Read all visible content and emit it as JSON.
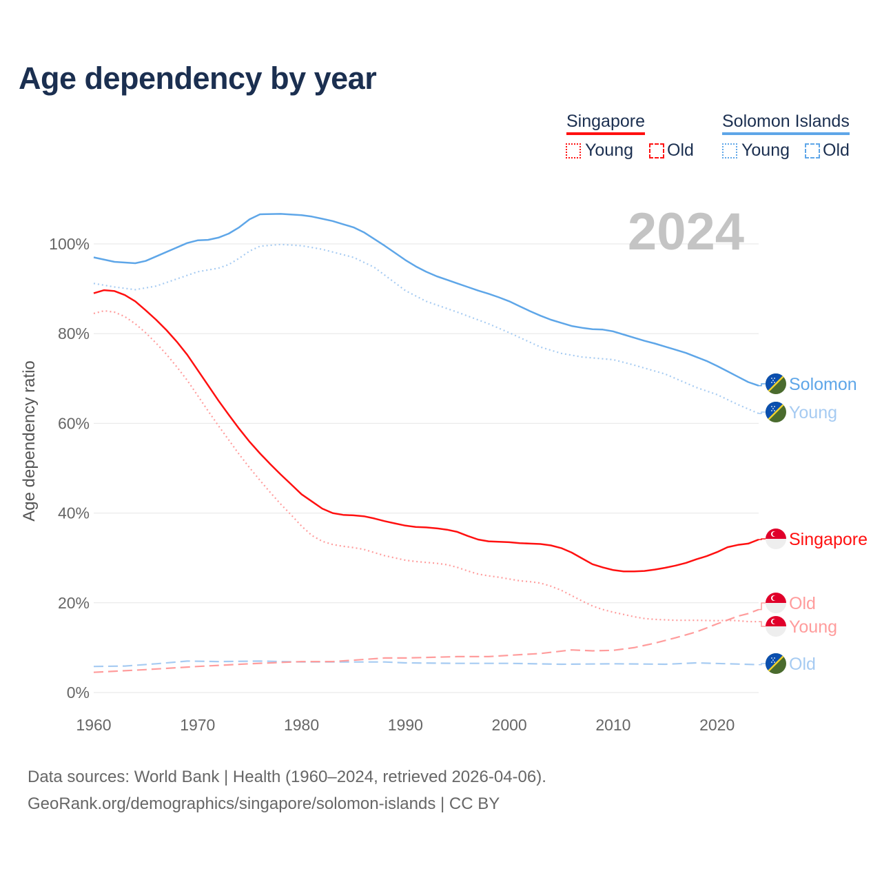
{
  "title": "Age dependency by year",
  "legend": {
    "groups": [
      {
        "country": "Singapore",
        "color": "#ff1010",
        "items": [
          "Young",
          "Old"
        ]
      },
      {
        "country": "Solomon Islands",
        "color": "#5ea6e8",
        "items": [
          "Young",
          "Old"
        ]
      }
    ]
  },
  "year_watermark": "2024",
  "footer": {
    "line1": "Data sources: World Bank | Health (1960–2024, retrieved 2026-04-06).",
    "line2": "GeoRank.org/demographics/singapore/solomon-islands | CC BY"
  },
  "chart_data": {
    "type": "line",
    "title": "Age dependency by year",
    "xlabel": "",
    "ylabel": "Age dependency ratio",
    "xlim": [
      1960,
      2024
    ],
    "ylim": [
      0,
      110
    ],
    "x_ticks": [
      "1960",
      "1970",
      "1980",
      "1990",
      "2000",
      "2010",
      "2020"
    ],
    "y_ticks": [
      "0%",
      "20%",
      "40%",
      "60%",
      "80%",
      "100%"
    ],
    "grid": true,
    "series": [
      {
        "id": "sb-total",
        "name": "Solomon",
        "country": "Solomon Islands",
        "kind": "total",
        "color": "#5ea6e8",
        "dash": "",
        "flag": "solomon",
        "points": [
          [
            1960,
            97
          ],
          [
            1962,
            96
          ],
          [
            1964,
            95.7
          ],
          [
            1965,
            96.2
          ],
          [
            1966,
            97.2
          ],
          [
            1967,
            98.2
          ],
          [
            1968,
            99.2
          ],
          [
            1969,
            100.2
          ],
          [
            1970,
            100.8
          ],
          [
            1971,
            100.9
          ],
          [
            1972,
            101.4
          ],
          [
            1973,
            102.3
          ],
          [
            1974,
            103.7
          ],
          [
            1975,
            105.5
          ],
          [
            1976,
            106.6
          ],
          [
            1978,
            106.7
          ],
          [
            1980,
            106.4
          ],
          [
            1981,
            106.1
          ],
          [
            1982,
            105.6
          ],
          [
            1983,
            105.1
          ],
          [
            1984,
            104.4
          ],
          [
            1985,
            103.7
          ],
          [
            1986,
            102.6
          ],
          [
            1987,
            101.1
          ],
          [
            1988,
            99.6
          ],
          [
            1989,
            98
          ],
          [
            1990,
            96.4
          ],
          [
            1991,
            95
          ],
          [
            1992,
            93.8
          ],
          [
            1993,
            92.8
          ],
          [
            1994,
            92
          ],
          [
            1995,
            91.2
          ],
          [
            1996,
            90.4
          ],
          [
            1997,
            89.6
          ],
          [
            1998,
            88.9
          ],
          [
            1999,
            88.1
          ],
          [
            2000,
            87.2
          ],
          [
            2001,
            86.1
          ],
          [
            2002,
            85
          ],
          [
            2003,
            84
          ],
          [
            2004,
            83.1
          ],
          [
            2005,
            82.4
          ],
          [
            2006,
            81.7
          ],
          [
            2007,
            81.3
          ],
          [
            2008,
            81
          ],
          [
            2009,
            80.9
          ],
          [
            2010,
            80.5
          ],
          [
            2011,
            79.8
          ],
          [
            2012,
            79.1
          ],
          [
            2013,
            78.4
          ],
          [
            2014,
            77.8
          ],
          [
            2015,
            77.1
          ],
          [
            2016,
            76.4
          ],
          [
            2017,
            75.7
          ],
          [
            2018,
            74.8
          ],
          [
            2019,
            73.9
          ],
          [
            2020,
            72.8
          ],
          [
            2021,
            71.6
          ],
          [
            2022,
            70.4
          ],
          [
            2023,
            69.2
          ],
          [
            2024,
            68.4
          ]
        ]
      },
      {
        "id": "sb-young",
        "name": "Young",
        "country": "Solomon Islands",
        "kind": "young",
        "color": "#a6cbf2",
        "dash": "2,4",
        "flag": "solomon",
        "points": [
          [
            1960,
            91.2
          ],
          [
            1962,
            90.4
          ],
          [
            1964,
            89.8
          ],
          [
            1966,
            90.6
          ],
          [
            1968,
            92.2
          ],
          [
            1970,
            93.8
          ],
          [
            1972,
            94.6
          ],
          [
            1973,
            95.4
          ],
          [
            1974,
            96.8
          ],
          [
            1975,
            98.4
          ],
          [
            1976,
            99.5
          ],
          [
            1978,
            99.9
          ],
          [
            1980,
            99.6
          ],
          [
            1982,
            98.8
          ],
          [
            1984,
            97.6
          ],
          [
            1985,
            97
          ],
          [
            1987,
            94.8
          ],
          [
            1990,
            89.6
          ],
          [
            1992,
            87.2
          ],
          [
            1995,
            84.8
          ],
          [
            1998,
            82.2
          ],
          [
            2000,
            80.2
          ],
          [
            2003,
            77
          ],
          [
            2005,
            75.6
          ],
          [
            2007,
            74.8
          ],
          [
            2010,
            74.2
          ],
          [
            2012,
            73
          ],
          [
            2015,
            71
          ],
          [
            2018,
            68
          ],
          [
            2020,
            66.4
          ],
          [
            2022,
            64.2
          ],
          [
            2024,
            62.2
          ]
        ]
      },
      {
        "id": "sb-old",
        "name": "Old",
        "country": "Solomon Islands",
        "kind": "old",
        "color": "#a6cbf2",
        "dash": "14,7",
        "flag": "solomon",
        "points": [
          [
            1960,
            5.8
          ],
          [
            1963,
            5.9
          ],
          [
            1966,
            6.4
          ],
          [
            1969,
            7
          ],
          [
            1972,
            6.9
          ],
          [
            1976,
            7
          ],
          [
            1980,
            6.8
          ],
          [
            1984,
            6.8
          ],
          [
            1988,
            6.8
          ],
          [
            1990,
            6.6
          ],
          [
            1995,
            6.5
          ],
          [
            2000,
            6.5
          ],
          [
            2005,
            6.3
          ],
          [
            2010,
            6.4
          ],
          [
            2015,
            6.3
          ],
          [
            2018,
            6.6
          ],
          [
            2021,
            6.4
          ],
          [
            2024,
            6.2
          ]
        ]
      },
      {
        "id": "sg-total",
        "name": "Singapore",
        "country": "Singapore",
        "kind": "total",
        "color": "#ff1010",
        "dash": "",
        "flag": "singapore",
        "points": [
          [
            1960,
            89
          ],
          [
            1961,
            89.7
          ],
          [
            1962,
            89.5
          ],
          [
            1963,
            88.6
          ],
          [
            1964,
            87.2
          ],
          [
            1965,
            85.2
          ],
          [
            1966,
            83.1
          ],
          [
            1967,
            80.8
          ],
          [
            1968,
            78.2
          ],
          [
            1969,
            75.3
          ],
          [
            1970,
            71.9
          ],
          [
            1971,
            68.5
          ],
          [
            1972,
            65.1
          ],
          [
            1973,
            61.9
          ],
          [
            1974,
            58.8
          ],
          [
            1975,
            55.9
          ],
          [
            1976,
            53.3
          ],
          [
            1977,
            50.9
          ],
          [
            1978,
            48.6
          ],
          [
            1979,
            46.4
          ],
          [
            1980,
            44.2
          ],
          [
            1981,
            42.6
          ],
          [
            1982,
            41
          ],
          [
            1983,
            40
          ],
          [
            1984,
            39.6
          ],
          [
            1985,
            39.5
          ],
          [
            1986,
            39.3
          ],
          [
            1987,
            38.8
          ],
          [
            1988,
            38.2
          ],
          [
            1989,
            37.7
          ],
          [
            1990,
            37.2
          ],
          [
            1991,
            36.9
          ],
          [
            1992,
            36.8
          ],
          [
            1993,
            36.6
          ],
          [
            1994,
            36.3
          ],
          [
            1995,
            35.8
          ],
          [
            1996,
            34.9
          ],
          [
            1997,
            34.1
          ],
          [
            1998,
            33.7
          ],
          [
            1999,
            33.6
          ],
          [
            2000,
            33.5
          ],
          [
            2001,
            33.3
          ],
          [
            2002,
            33.2
          ],
          [
            2003,
            33.1
          ],
          [
            2004,
            32.8
          ],
          [
            2005,
            32.2
          ],
          [
            2006,
            31.2
          ],
          [
            2007,
            29.9
          ],
          [
            2008,
            28.6
          ],
          [
            2009,
            27.9
          ],
          [
            2010,
            27.3
          ],
          [
            2011,
            27
          ],
          [
            2012,
            27
          ],
          [
            2013,
            27.1
          ],
          [
            2014,
            27.4
          ],
          [
            2015,
            27.8
          ],
          [
            2016,
            28.3
          ],
          [
            2017,
            28.9
          ],
          [
            2018,
            29.7
          ],
          [
            2019,
            30.4
          ],
          [
            2020,
            31.3
          ],
          [
            2021,
            32.4
          ],
          [
            2022,
            32.9
          ],
          [
            2023,
            33.2
          ],
          [
            2024,
            34.1
          ]
        ]
      },
      {
        "id": "sg-young",
        "name": "Young",
        "country": "Singapore",
        "kind": "young",
        "color": "#ff9c9c",
        "dash": "2,4",
        "flag": "singapore",
        "points": [
          [
            1960,
            84.5
          ],
          [
            1961,
            85.1
          ],
          [
            1962,
            84.8
          ],
          [
            1963,
            83.8
          ],
          [
            1964,
            82.2
          ],
          [
            1965,
            80.2
          ],
          [
            1966,
            77.9
          ],
          [
            1967,
            75.4
          ],
          [
            1968,
            72.6
          ],
          [
            1969,
            69.6
          ],
          [
            1970,
            66.2
          ],
          [
            1971,
            62.8
          ],
          [
            1972,
            59.5
          ],
          [
            1973,
            56.3
          ],
          [
            1974,
            53.1
          ],
          [
            1975,
            50.1
          ],
          [
            1976,
            47.3
          ],
          [
            1977,
            44.6
          ],
          [
            1978,
            42
          ],
          [
            1979,
            39.6
          ],
          [
            1980,
            37.1
          ],
          [
            1981,
            35
          ],
          [
            1982,
            33.7
          ],
          [
            1983,
            33
          ],
          [
            1984,
            32.6
          ],
          [
            1985,
            32.3
          ],
          [
            1986,
            31.9
          ],
          [
            1987,
            31.2
          ],
          [
            1988,
            30.5
          ],
          [
            1989,
            30
          ],
          [
            1990,
            29.5
          ],
          [
            1991,
            29.2
          ],
          [
            1992,
            29
          ],
          [
            1993,
            28.8
          ],
          [
            1994,
            28.5
          ],
          [
            1995,
            27.9
          ],
          [
            1996,
            27.1
          ],
          [
            1997,
            26.4
          ],
          [
            1998,
            26
          ],
          [
            1999,
            25.7
          ],
          [
            2000,
            25.3
          ],
          [
            2001,
            24.9
          ],
          [
            2002,
            24.7
          ],
          [
            2003,
            24.4
          ],
          [
            2004,
            23.7
          ],
          [
            2005,
            22.8
          ],
          [
            2006,
            21.6
          ],
          [
            2007,
            20.4
          ],
          [
            2008,
            19.3
          ],
          [
            2009,
            18.5
          ],
          [
            2010,
            17.9
          ],
          [
            2011,
            17.4
          ],
          [
            2012,
            16.9
          ],
          [
            2013,
            16.5
          ],
          [
            2014,
            16.3
          ],
          [
            2015,
            16.2
          ],
          [
            2016,
            16.1
          ],
          [
            2018,
            16.1
          ],
          [
            2020,
            16
          ],
          [
            2021,
            16.1
          ],
          [
            2022,
            16
          ],
          [
            2023,
            15.8
          ],
          [
            2024,
            15.8
          ]
        ]
      },
      {
        "id": "sg-old",
        "name": "Old",
        "country": "Singapore",
        "kind": "old",
        "color": "#ff9c9c",
        "dash": "14,7",
        "flag": "singapore",
        "points": [
          [
            1960,
            4.5
          ],
          [
            1965,
            5.1
          ],
          [
            1970,
            5.8
          ],
          [
            1975,
            6.4
          ],
          [
            1980,
            6.9
          ],
          [
            1983,
            6.9
          ],
          [
            1985,
            7.2
          ],
          [
            1988,
            7.7
          ],
          [
            1990,
            7.7
          ],
          [
            1995,
            8
          ],
          [
            1998,
            8
          ],
          [
            2000,
            8.3
          ],
          [
            2003,
            8.7
          ],
          [
            2006,
            9.5
          ],
          [
            2008,
            9.3
          ],
          [
            2010,
            9.4
          ],
          [
            2012,
            10
          ],
          [
            2014,
            11
          ],
          [
            2016,
            12.2
          ],
          [
            2018,
            13.5
          ],
          [
            2020,
            15.3
          ],
          [
            2022,
            17
          ],
          [
            2023,
            17.6
          ],
          [
            2024,
            18.5
          ]
        ]
      }
    ]
  }
}
